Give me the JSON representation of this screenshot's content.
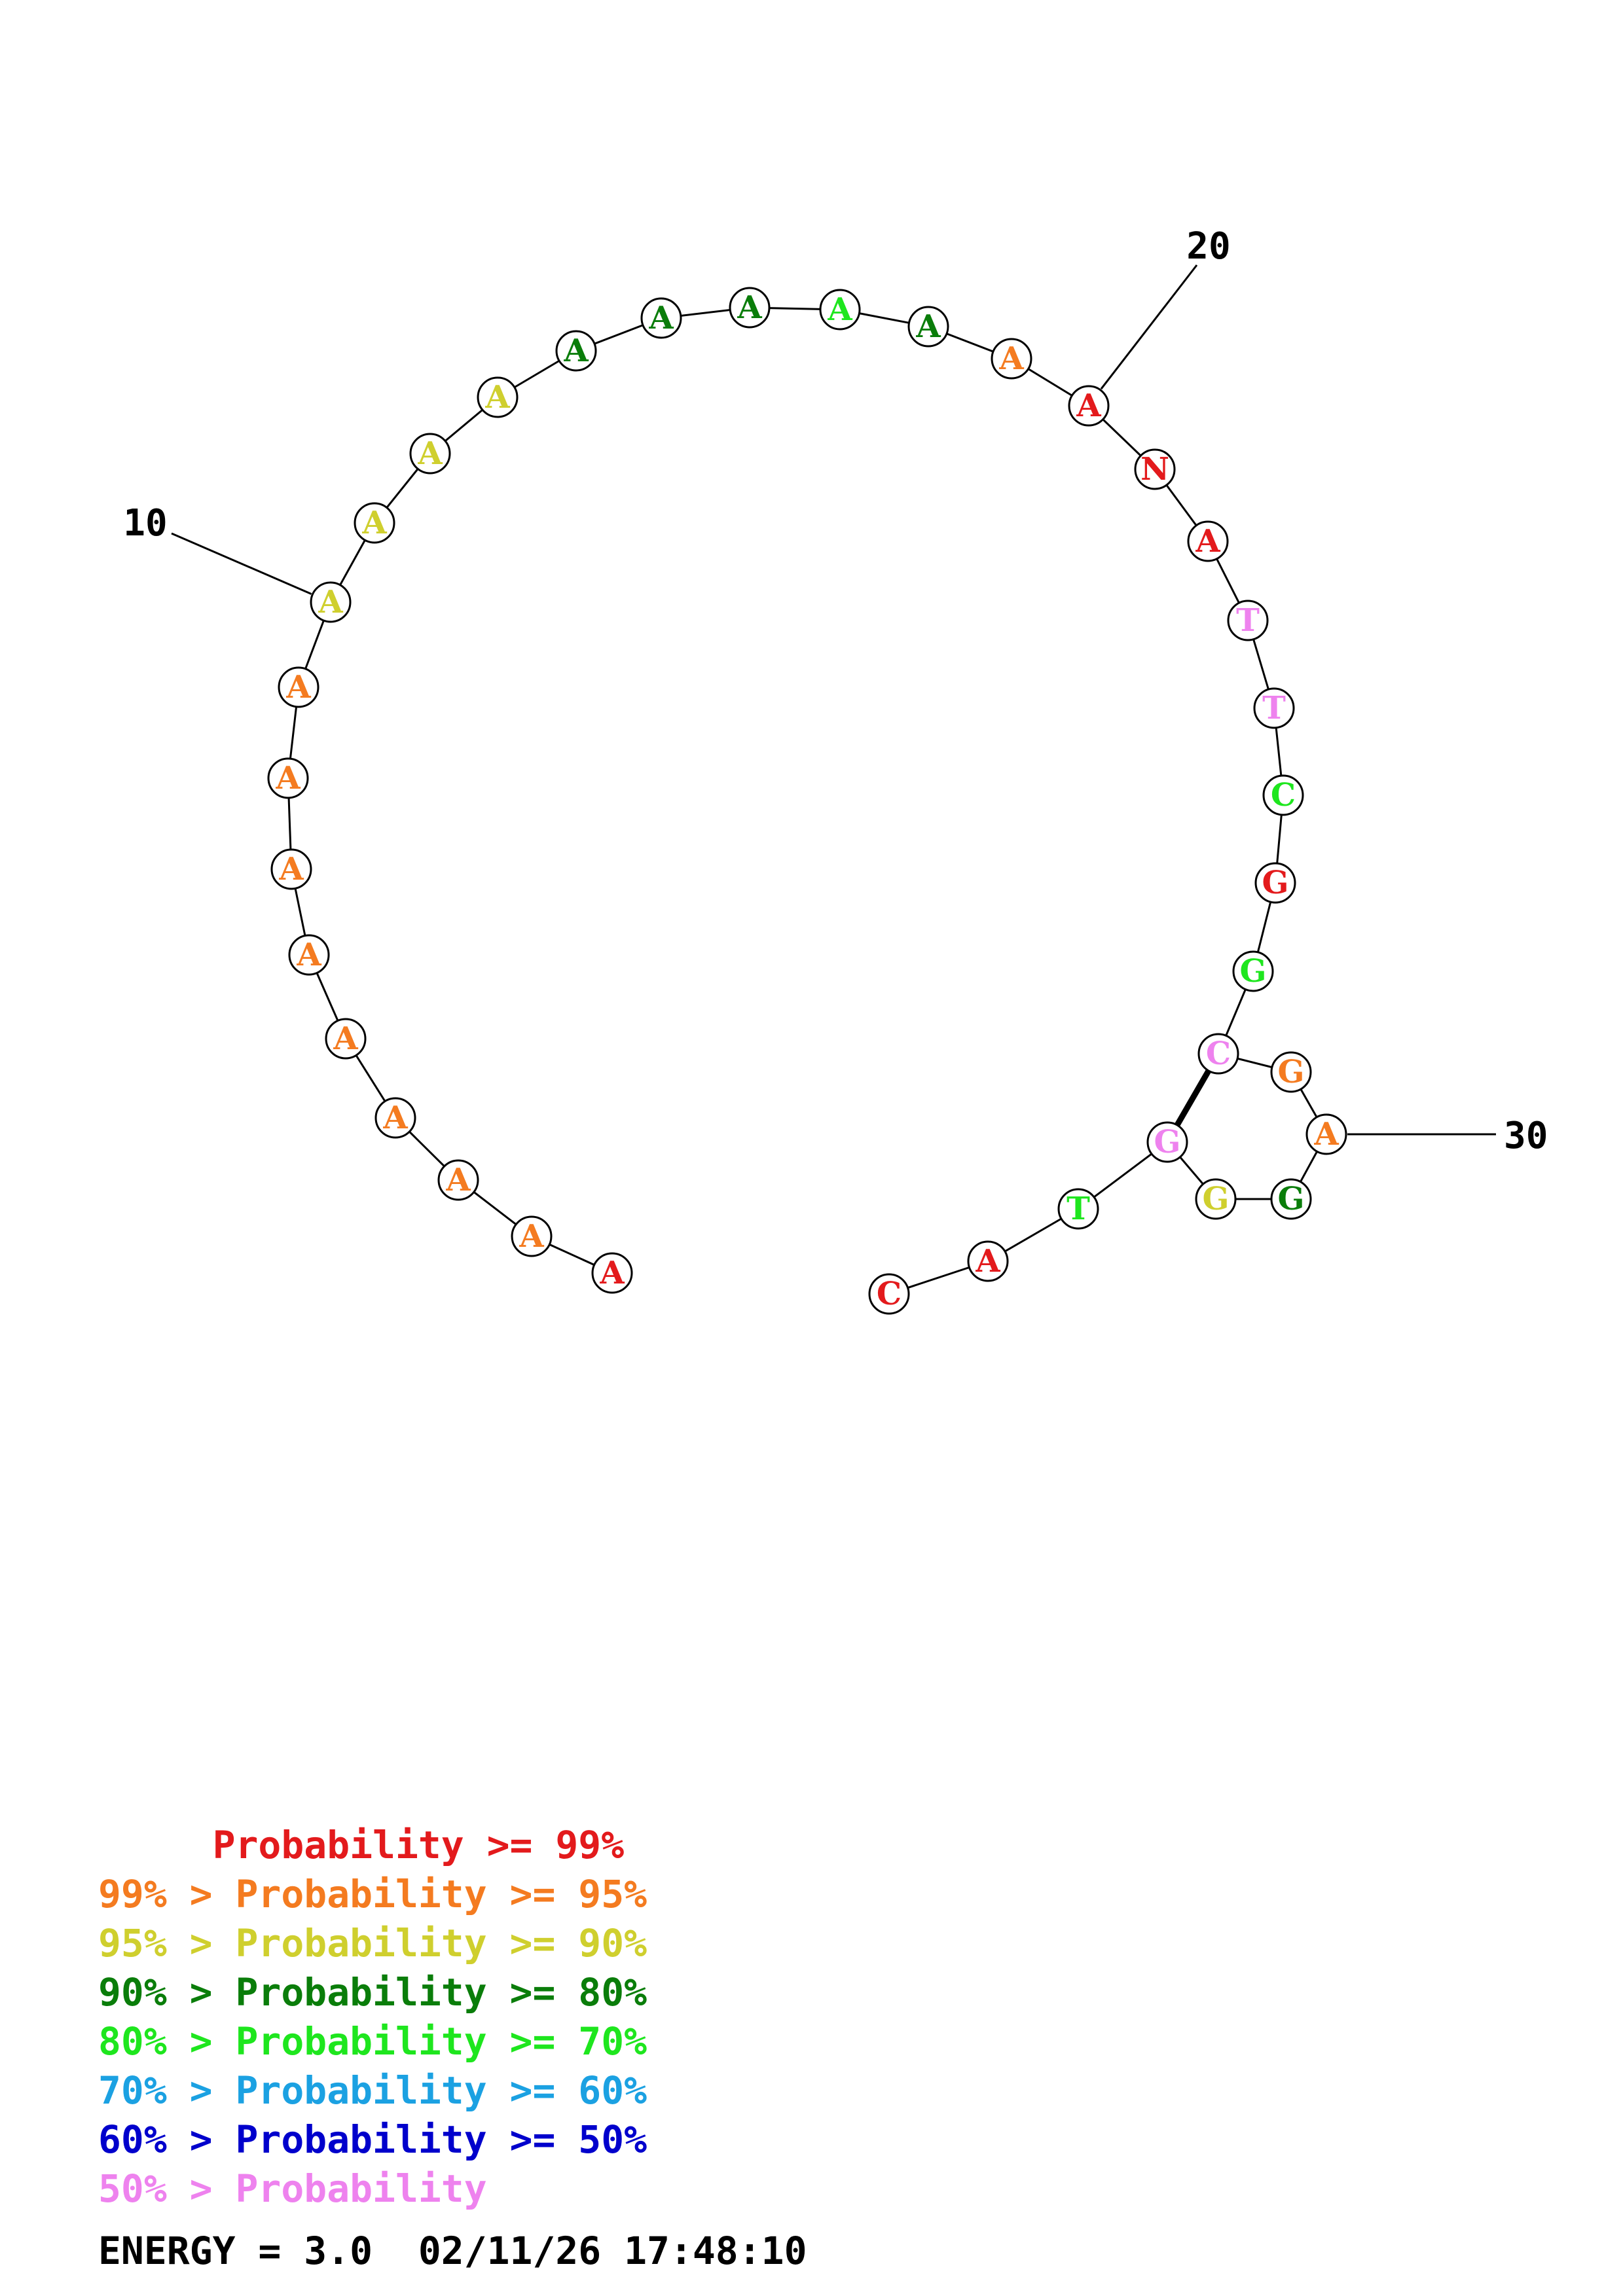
{
  "sequence": [
    "A",
    "A",
    "A",
    "A",
    "A",
    "A",
    "A",
    "A",
    "A",
    "A",
    "A",
    "A",
    "A",
    "A",
    "A",
    "A",
    "A",
    "A",
    "A",
    "A",
    "N",
    "A",
    "T",
    "T",
    "C",
    "G",
    "G",
    "C",
    "G",
    "A",
    "G",
    "G",
    "G",
    "T",
    "A",
    "C"
  ],
  "base_colors": [
    "#e31a1c",
    "#f47b20",
    "#f47b20",
    "#f47b20",
    "#f47b20",
    "#f47b20",
    "#f47b20",
    "#f47b20",
    "#f47b20",
    "#cfcf2e",
    "#cfcf2e",
    "#cfcf2e",
    "#cfcf2e",
    "#0a7d0a",
    "#0a7d0a",
    "#0a7d0a",
    "#1ee61e",
    "#0a7d0a",
    "#f47b20",
    "#e31a1c",
    "#e31a1c",
    "#e31a1c",
    "#ee82ee",
    "#ee82ee",
    "#1ee61e",
    "#e31a1c",
    "#1ee61e",
    "#ee82ee",
    "#f47b20",
    "#f47b20",
    "#0a7d0a",
    "#cfcf2e",
    "#ee82ee",
    "#1ee61e",
    "#e31a1c",
    "#e31a1c"
  ],
  "position_labels": [
    {
      "index": 10,
      "text": "10"
    },
    {
      "index": 20,
      "text": "20"
    },
    {
      "index": 30,
      "text": "30"
    }
  ],
  "base_pairs": [
    [
      28,
      33
    ]
  ],
  "legend": [
    {
      "text": "     Probability >= 99%",
      "color": "#e31a1c"
    },
    {
      "text": "99% > Probability >= 95%",
      "color": "#f47b20"
    },
    {
      "text": "95% > Probability >= 90%",
      "color": "#cfcf2e"
    },
    {
      "text": "90% > Probability >= 80%",
      "color": "#0a7d0a"
    },
    {
      "text": "80% > Probability >= 70%",
      "color": "#1ee61e"
    },
    {
      "text": "70% > Probability >= 60%",
      "color": "#1ba1e2"
    },
    {
      "text": "60% > Probability >= 50%",
      "color": "#0000cc"
    },
    {
      "text": "50% > Probability",
      "color": "#ee82ee"
    }
  ],
  "energy_text": "ENERGY = 3.0  02/11/26 17:48:10"
}
